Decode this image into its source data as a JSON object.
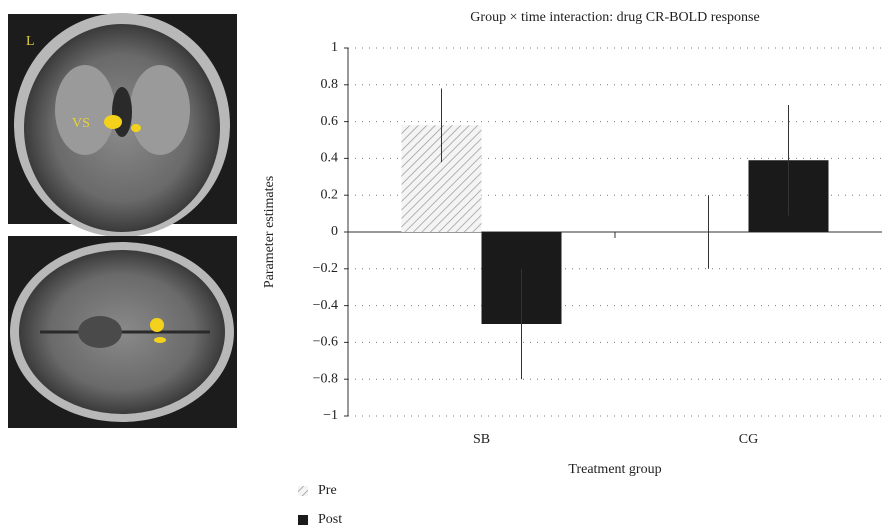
{
  "brain_image": {
    "side_label": "L",
    "region_label": "VS"
  },
  "chart_data": {
    "type": "bar",
    "title": "Group × time interaction: drug CR-BOLD response",
    "y_label": "Parameter estimates",
    "x_label": "Treatment group",
    "categories": [
      "SB",
      "CG"
    ],
    "series": [
      {
        "name": "Pre",
        "color": "#bbbbbb",
        "hatch": true,
        "values": [
          0.58,
          0
        ],
        "errors": [
          0.2,
          0.2
        ]
      },
      {
        "name": "Post",
        "color": "#1a1a1a",
        "hatch": false,
        "values": [
          -0.5,
          0.39
        ],
        "errors": [
          0.3,
          0.3
        ]
      }
    ],
    "ylim": [
      -1,
      1
    ],
    "yticks": [
      {
        "value": -1,
        "label": "−1"
      },
      {
        "value": -0.8,
        "label": "−0.8"
      },
      {
        "value": -0.6,
        "label": "−0.6"
      },
      {
        "value": -0.4,
        "label": "−0.4"
      },
      {
        "value": -0.2,
        "label": "−0.2"
      },
      0,
      0.2,
      0.4,
      0.6,
      0.8,
      1
    ],
    "grid": true,
    "legend": "bottom-left"
  }
}
